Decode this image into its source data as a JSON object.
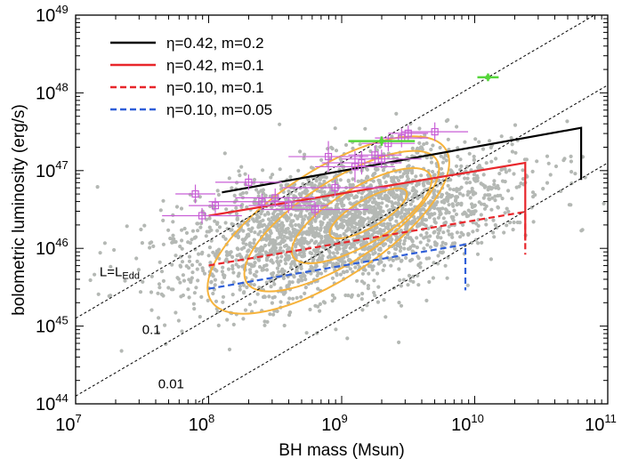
{
  "chart_data": {
    "type": "scatter",
    "title": "",
    "xlabel": "BH mass (Msun)",
    "ylabel": "bolometric luminosity (erg/s)",
    "xscale": "log",
    "yscale": "log",
    "xlim_log10": [
      7,
      11
    ],
    "ylim_log10": [
      44,
      49
    ],
    "x_ticks": [
      {
        "base": "10",
        "exp": "7",
        "log": 7
      },
      {
        "base": "10",
        "exp": "8",
        "log": 8
      },
      {
        "base": "10",
        "exp": "9",
        "log": 9
      },
      {
        "base": "10",
        "exp": "10",
        "log": 10
      },
      {
        "base": "10",
        "exp": "11",
        "log": 11
      }
    ],
    "y_ticks": [
      {
        "base": "10",
        "exp": "44",
        "log": 44
      },
      {
        "base": "10",
        "exp": "45",
        "log": 45
      },
      {
        "base": "10",
        "exp": "46",
        "log": 46
      },
      {
        "base": "10",
        "exp": "47",
        "log": 47
      },
      {
        "base": "10",
        "exp": "48",
        "log": 48
      },
      {
        "base": "10",
        "exp": "49",
        "log": 49
      }
    ],
    "legend_position": "top-left",
    "series": [
      {
        "name": "η=0.42, m=0.2",
        "color": "#000000",
        "dash": "solid",
        "points": [
          [
            8.1,
            46.72
          ],
          [
            10.8,
            47.55
          ],
          [
            10.8,
            46.88
          ]
        ]
      },
      {
        "name": "η=0.42, m=0.1",
        "color": "#e8262b",
        "dash": "solid",
        "points": [
          [
            8.0,
            46.42
          ],
          [
            10.38,
            47.1
          ],
          [
            10.38,
            46.1
          ]
        ]
      },
      {
        "name": "η=0.10, m=0.1",
        "color": "#e8262b",
        "dash": "dashed",
        "points": [
          [
            8.0,
            45.78
          ],
          [
            10.38,
            46.47
          ],
          [
            10.38,
            45.92
          ]
        ]
      },
      {
        "name": "η=0.10, m=0.05",
        "color": "#2f5fd8",
        "dash": "dashed",
        "points": [
          [
            8.0,
            45.48
          ],
          [
            9.93,
            46.05
          ],
          [
            9.93,
            45.46
          ]
        ]
      }
    ],
    "eddington_lines": [
      {
        "label_base": "L=L",
        "label_sub": "Edd",
        "fraction": 1,
        "label_pos": [
          7.18,
          45.64
        ]
      },
      {
        "label_base": "0.1",
        "label_sub": "",
        "fraction": 0.1,
        "label_pos": [
          7.5,
          44.9
        ]
      },
      {
        "label_base": "0.01",
        "label_sub": "",
        "fraction": 0.01,
        "label_pos": [
          7.62,
          44.2
        ]
      }
    ],
    "eddington_constant_log": 38.1,
    "background_sample": {
      "description_color": "#b4b8b4",
      "center": [
        9.0,
        46.3
      ],
      "count": 2600
    },
    "contour_color": "#f6b33c",
    "contour_levels": [
      {
        "center": [
          8.9,
          46.3
        ],
        "rx": 1.05,
        "ry": 0.7,
        "angle_deg": -33
      },
      {
        "center": [
          9.0,
          46.35
        ],
        "rx": 0.85,
        "ry": 0.52,
        "angle_deg": -33
      },
      {
        "center": [
          9.15,
          46.42
        ],
        "rx": 0.6,
        "ry": 0.36,
        "angle_deg": -31
      },
      {
        "center": [
          9.2,
          46.45
        ],
        "rx": 0.33,
        "ry": 0.18,
        "angle_deg": -30
      }
    ],
    "magenta_points": {
      "color": "#c85fd6",
      "points": [
        {
          "x": 7.9,
          "y": 46.7,
          "xerr": 0.15,
          "yerr": 0.12
        },
        {
          "x": 8.05,
          "y": 46.55,
          "xerr": 0.2,
          "yerr": 0.1
        },
        {
          "x": 7.95,
          "y": 46.42,
          "xerr": 0.3,
          "yerr": 0.1
        },
        {
          "x": 8.3,
          "y": 46.85,
          "xerr": 0.25,
          "yerr": 0.1
        },
        {
          "x": 8.5,
          "y": 46.65,
          "xerr": 0.3,
          "yerr": 0.12
        },
        {
          "x": 8.4,
          "y": 46.6,
          "xerr": 0.4,
          "yerr": 0.1
        },
        {
          "x": 8.6,
          "y": 46.55,
          "xerr": 0.3,
          "yerr": 0.1
        },
        {
          "x": 8.8,
          "y": 46.5,
          "xerr": 0.4,
          "yerr": 0.1
        },
        {
          "x": 8.9,
          "y": 47.18,
          "xerr": 0.3,
          "yerr": 0.2
        },
        {
          "x": 8.95,
          "y": 46.78,
          "xerr": 0.4,
          "yerr": 0.1
        },
        {
          "x": 9.1,
          "y": 47.05,
          "xerr": 0.3,
          "yerr": 0.2
        },
        {
          "x": 9.15,
          "y": 47.1,
          "xerr": 0.3,
          "yerr": 0.15
        },
        {
          "x": 9.25,
          "y": 47.2,
          "xerr": 0.2,
          "yerr": 0.12
        },
        {
          "x": 9.3,
          "y": 47.15,
          "xerr": 0.3,
          "yerr": 0.12
        },
        {
          "x": 9.35,
          "y": 47.35,
          "xerr": 0.2,
          "yerr": 0.1
        },
        {
          "x": 9.45,
          "y": 47.42,
          "xerr": 0.2,
          "yerr": 0.12
        },
        {
          "x": 9.7,
          "y": 47.5,
          "xerr": 0.25,
          "yerr": 0.12
        },
        {
          "x": 9.5,
          "y": 47.48,
          "xerr": 0.15,
          "yerr": 0.1
        }
      ]
    },
    "green_points": {
      "color": "#55d63a",
      "points": [
        {
          "x": 10.1,
          "y": 48.2,
          "xerr": 0.08,
          "yerr": 0.05
        },
        {
          "x": 9.3,
          "y": 47.38,
          "xerr": 0.25,
          "yerr": 0.06
        }
      ]
    }
  }
}
